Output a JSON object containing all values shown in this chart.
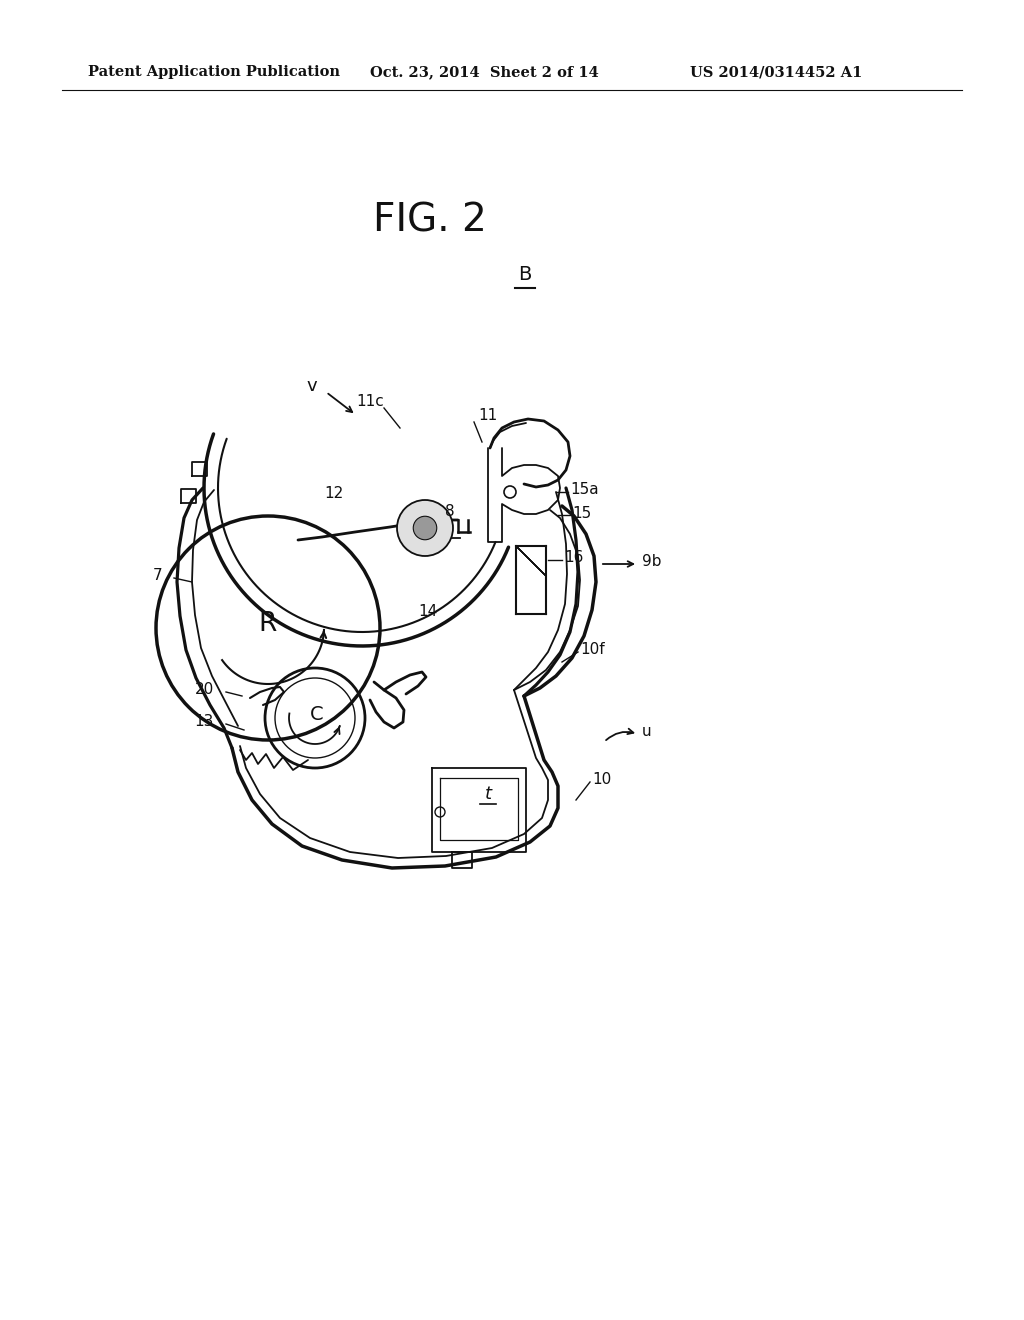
{
  "bg_color": "#ffffff",
  "lc": "#111111",
  "header_left": "Patent Application Publication",
  "header_center": "Oct. 23, 2014  Sheet 2 of 14",
  "header_right": "US 2014/0314452 A1",
  "fig_label": "FIG. 2",
  "B_label": "B",
  "figsize": [
    10.24,
    13.2
  ],
  "dpi": 100
}
